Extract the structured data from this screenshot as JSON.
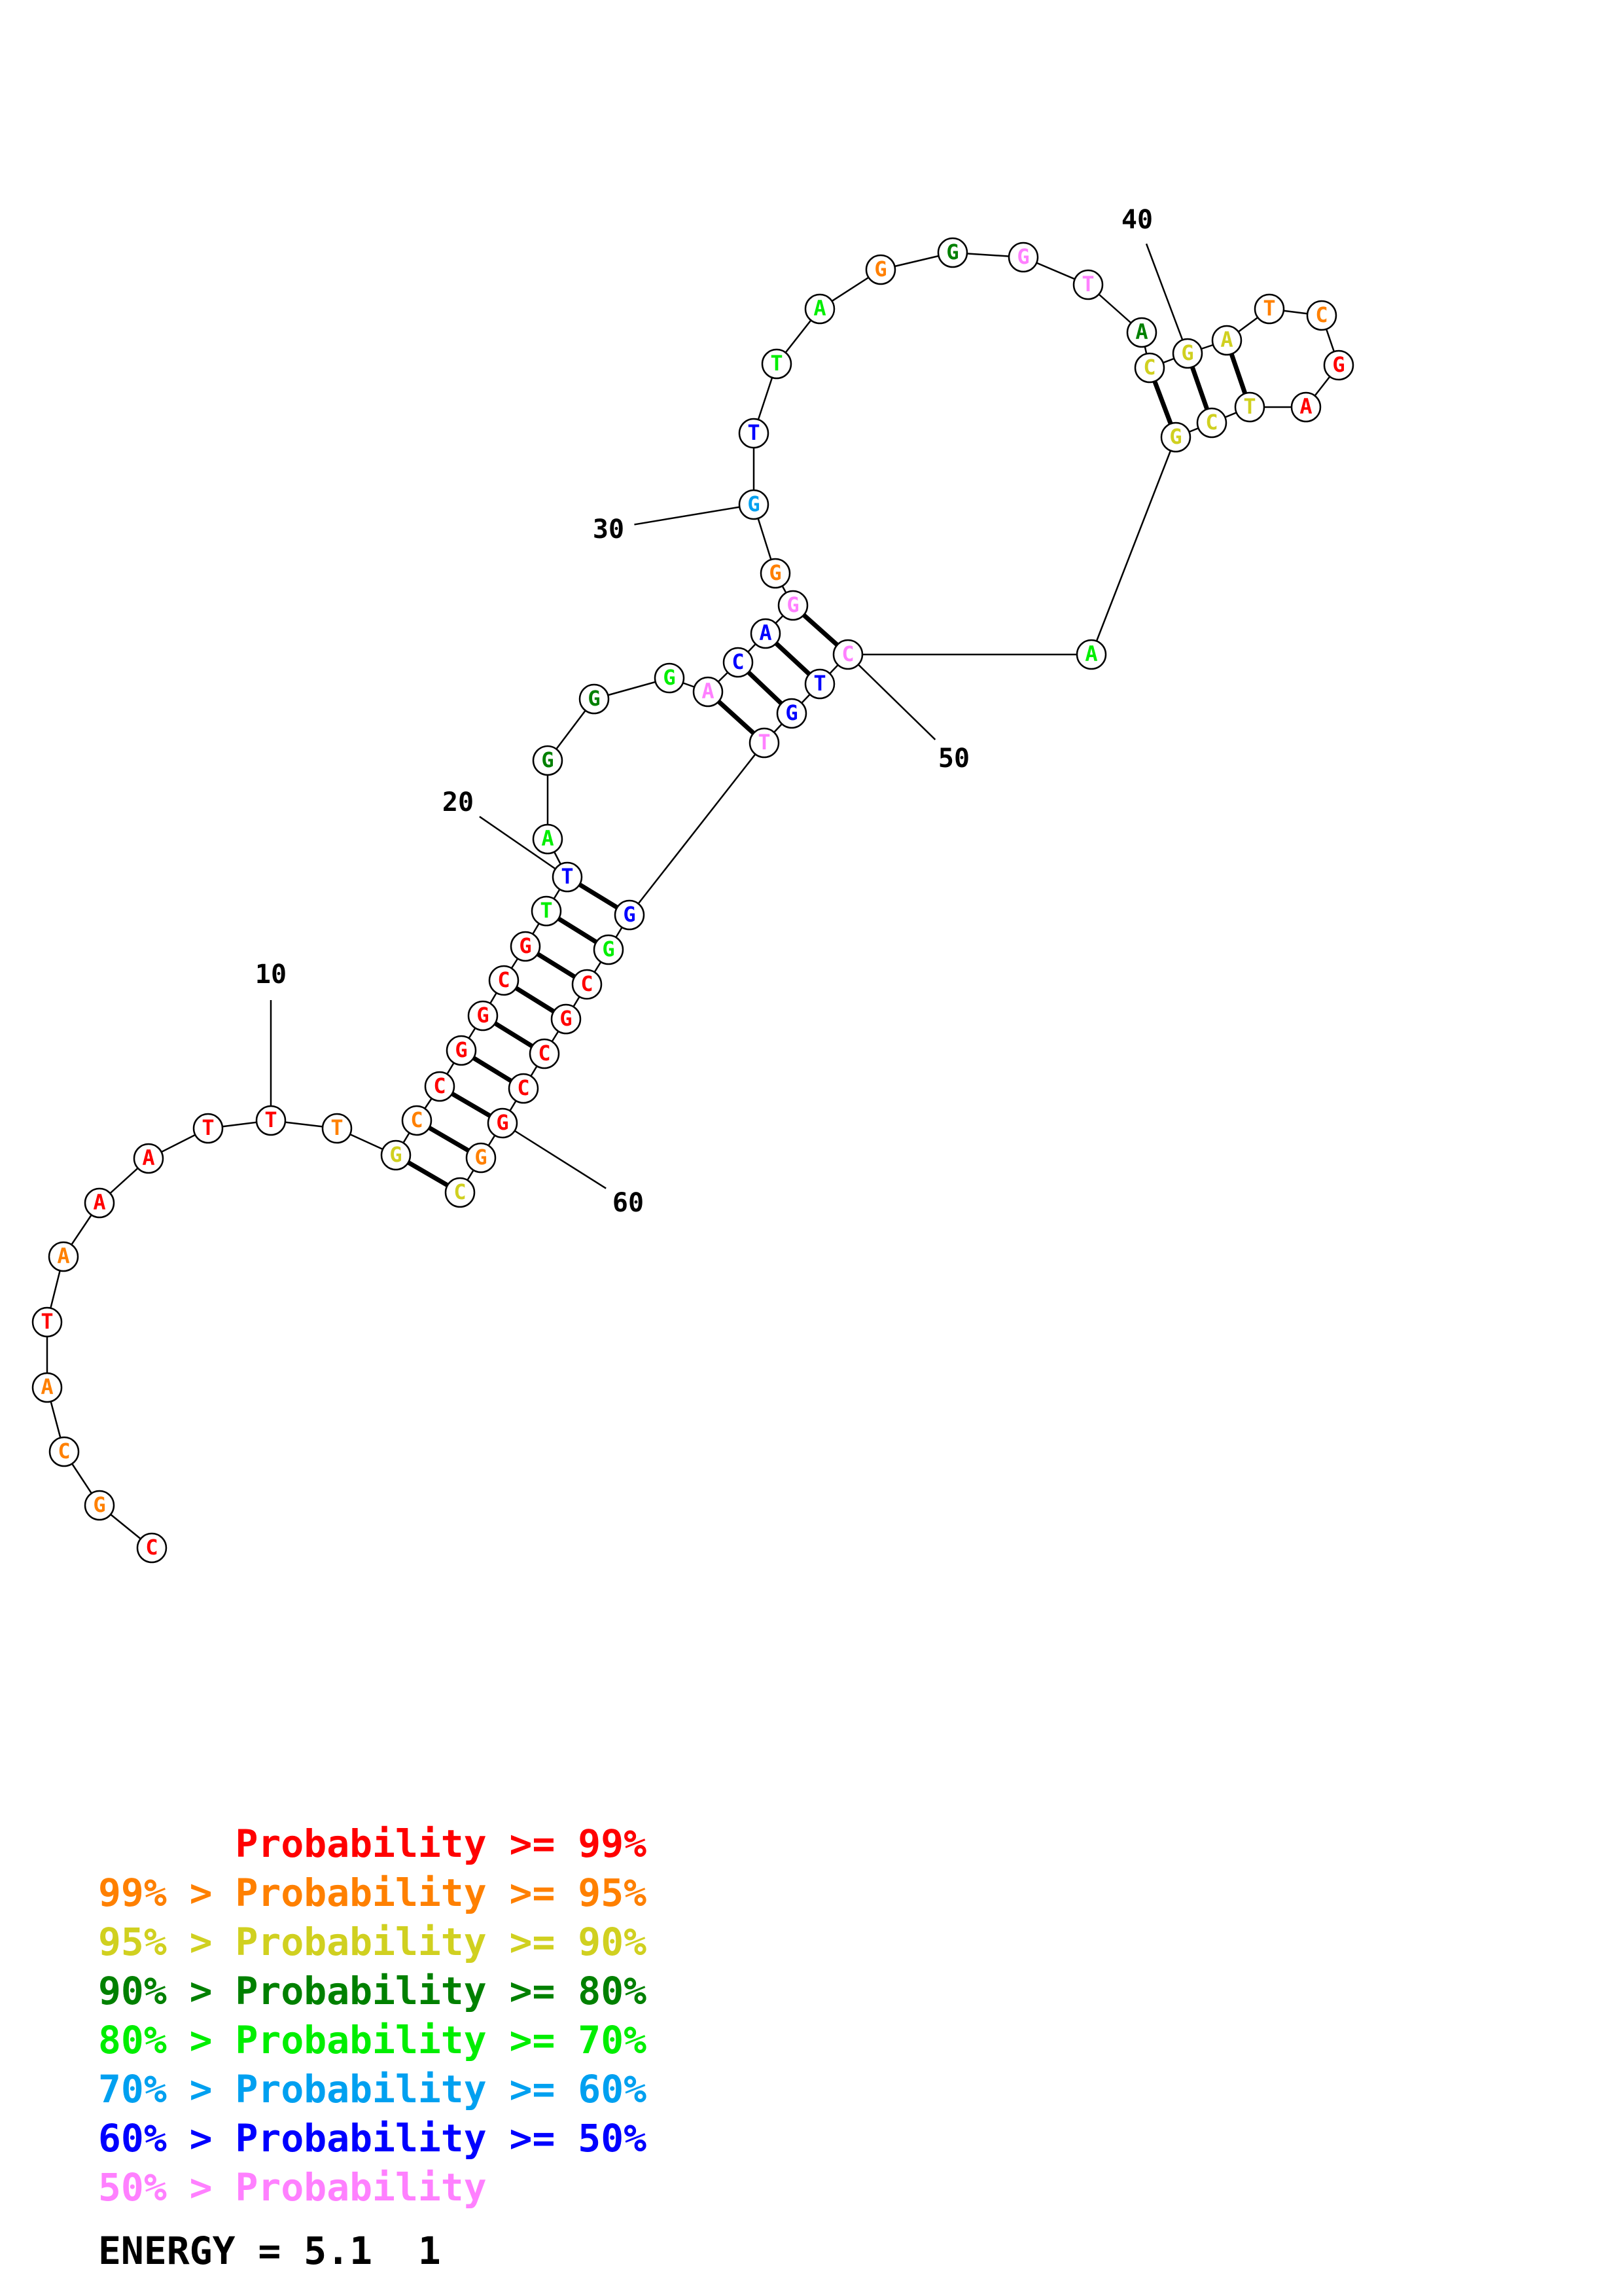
{
  "diagram": {
    "bases": [
      {
        "n": 1,
        "base": "C",
        "color": "#ff0000"
      },
      {
        "n": 2,
        "base": "G",
        "color": "#ff8000"
      },
      {
        "n": 3,
        "base": "C",
        "color": "#ff8000"
      },
      {
        "n": 4,
        "base": "A",
        "color": "#ff8000"
      },
      {
        "n": 5,
        "base": "T",
        "color": "#ff0000"
      },
      {
        "n": 6,
        "base": "A",
        "color": "#ff8000"
      },
      {
        "n": 7,
        "base": "A",
        "color": "#ff0000"
      },
      {
        "n": 8,
        "base": "A",
        "color": "#ff0000"
      },
      {
        "n": 9,
        "base": "T",
        "color": "#ff0000"
      },
      {
        "n": 10,
        "base": "T",
        "color": "#ff0000"
      },
      {
        "n": 11,
        "base": "T",
        "color": "#ff8000"
      },
      {
        "n": 12,
        "base": "G",
        "color": "#d0d020"
      },
      {
        "n": 13,
        "base": "C",
        "color": "#ff8000"
      },
      {
        "n": 14,
        "base": "C",
        "color": "#ff0000"
      },
      {
        "n": 15,
        "base": "G",
        "color": "#ff0000"
      },
      {
        "n": 16,
        "base": "G",
        "color": "#ff0000"
      },
      {
        "n": 17,
        "base": "C",
        "color": "#ff0000"
      },
      {
        "n": 18,
        "base": "G",
        "color": "#ff0000"
      },
      {
        "n": 19,
        "base": "T",
        "color": "#00ee00"
      },
      {
        "n": 20,
        "base": "T",
        "color": "#0000ff"
      },
      {
        "n": 21,
        "base": "A",
        "color": "#00ee00"
      },
      {
        "n": 22,
        "base": "G",
        "color": "#008000"
      },
      {
        "n": 23,
        "base": "G",
        "color": "#008000"
      },
      {
        "n": 24,
        "base": "G",
        "color": "#00ee00"
      },
      {
        "n": 25,
        "base": "A",
        "color": "#ff80ff"
      },
      {
        "n": 26,
        "base": "C",
        "color": "#0000ff"
      },
      {
        "n": 27,
        "base": "A",
        "color": "#0000ff"
      },
      {
        "n": 28,
        "base": "G",
        "color": "#ff80ff"
      },
      {
        "n": 29,
        "base": "G",
        "color": "#ff8000"
      },
      {
        "n": 30,
        "base": "G",
        "color": "#00a0f0"
      },
      {
        "n": 31,
        "base": "T",
        "color": "#0000ff"
      },
      {
        "n": 32,
        "base": "T",
        "color": "#00ee00"
      },
      {
        "n": 33,
        "base": "A",
        "color": "#00ee00"
      },
      {
        "n": 34,
        "base": "G",
        "color": "#ff8000"
      },
      {
        "n": 35,
        "base": "G",
        "color": "#008000"
      },
      {
        "n": 36,
        "base": "G",
        "color": "#ff80ff"
      },
      {
        "n": 37,
        "base": "T",
        "color": "#ff80ff"
      },
      {
        "n": 38,
        "base": "A",
        "color": "#008000"
      },
      {
        "n": 39,
        "base": "C",
        "color": "#d0d020"
      },
      {
        "n": 40,
        "base": "G",
        "color": "#d0d020"
      },
      {
        "n": 41,
        "base": "A",
        "color": "#d0d020"
      },
      {
        "n": 42,
        "base": "T",
        "color": "#ff8000"
      },
      {
        "n": 43,
        "base": "C",
        "color": "#ff8000"
      },
      {
        "n": 44,
        "base": "G",
        "color": "#ff0000"
      },
      {
        "n": 45,
        "base": "A",
        "color": "#ff0000"
      },
      {
        "n": 46,
        "base": "T",
        "color": "#d0d020"
      },
      {
        "n": 47,
        "base": "C",
        "color": "#d0d020"
      },
      {
        "n": 48,
        "base": "G",
        "color": "#d0d020"
      },
      {
        "n": 49,
        "base": "A",
        "color": "#00ee00"
      },
      {
        "n": 50,
        "base": "C",
        "color": "#ff80ff"
      },
      {
        "n": 51,
        "base": "T",
        "color": "#0000ff"
      },
      {
        "n": 52,
        "base": "G",
        "color": "#0000ff"
      },
      {
        "n": 53,
        "base": "T",
        "color": "#ff80ff"
      },
      {
        "n": 54,
        "base": "G",
        "color": "#0000ff"
      },
      {
        "n": 55,
        "base": "G",
        "color": "#00ee00"
      },
      {
        "n": 56,
        "base": "C",
        "color": "#ff0000"
      },
      {
        "n": 57,
        "base": "G",
        "color": "#ff0000"
      },
      {
        "n": 58,
        "base": "C",
        "color": "#ff0000"
      },
      {
        "n": 59,
        "base": "C",
        "color": "#ff0000"
      },
      {
        "n": 60,
        "base": "G",
        "color": "#ff0000"
      },
      {
        "n": 61,
        "base": "G",
        "color": "#ff8000"
      },
      {
        "n": 62,
        "base": "C",
        "color": "#d0d020"
      }
    ],
    "pairs": [
      [
        12,
        62
      ],
      [
        13,
        61
      ],
      [
        14,
        60
      ],
      [
        15,
        59
      ],
      [
        16,
        58
      ],
      [
        17,
        57
      ],
      [
        18,
        56
      ],
      [
        19,
        55
      ],
      [
        20,
        54
      ],
      [
        25,
        53
      ],
      [
        26,
        52
      ],
      [
        27,
        51
      ],
      [
        28,
        50
      ],
      [
        39,
        48
      ],
      [
        40,
        47
      ],
      [
        41,
        46
      ]
    ],
    "position_labels": [
      {
        "text": "10",
        "base": 10
      },
      {
        "text": "20",
        "base": 20
      },
      {
        "text": "30",
        "base": 30
      },
      {
        "text": "40",
        "base": 40
      },
      {
        "text": "50",
        "base": 50
      },
      {
        "text": "60",
        "base": 60
      }
    ]
  },
  "legend": {
    "rows": [
      {
        "text": "      Probability >= 99%",
        "color": "#ff0000"
      },
      {
        "text": "99% > Probability >= 95%",
        "color": "#ff8000"
      },
      {
        "text": "95% > Probability >= 90%",
        "color": "#d0d020"
      },
      {
        "text": "90% > Probability >= 80%",
        "color": "#008000"
      },
      {
        "text": "80% > Probability >= 70%",
        "color": "#00ee00"
      },
      {
        "text": "70% > Probability >= 60%",
        "color": "#00a0f0"
      },
      {
        "text": "60% > Probability >= 50%",
        "color": "#0000ff"
      },
      {
        "text": "50% > Probability",
        "color": "#ff80ff"
      }
    ]
  },
  "energy": {
    "text": "ENERGY = 5.1  1"
  }
}
